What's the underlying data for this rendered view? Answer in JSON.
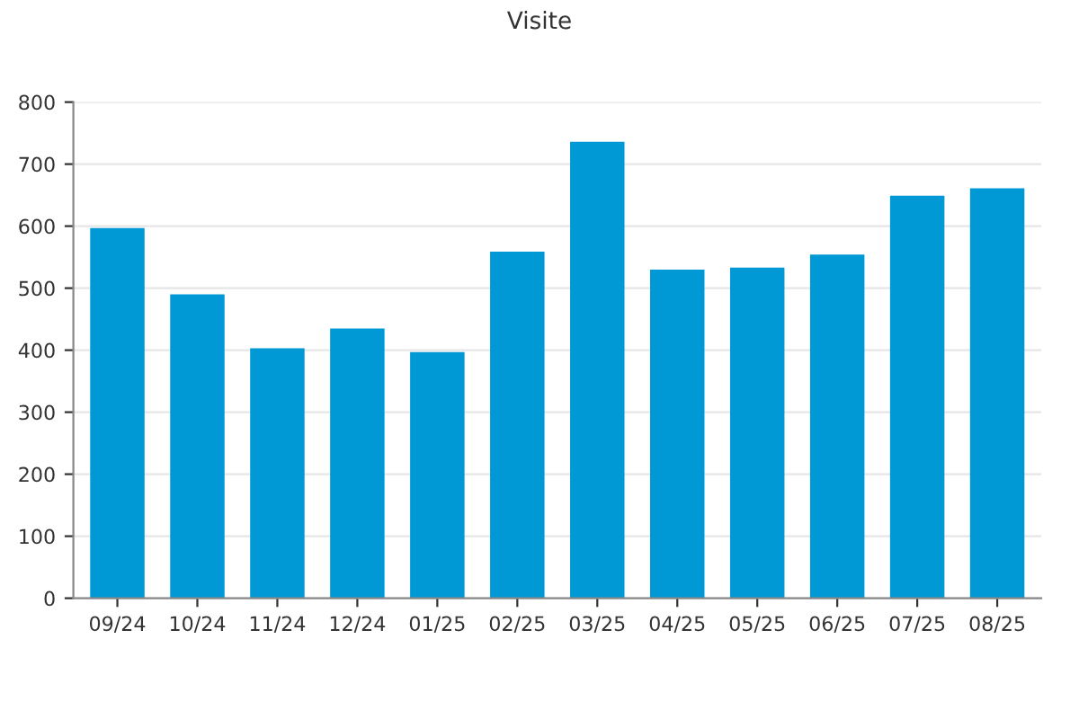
{
  "chart_data": {
    "type": "bar",
    "title": "Visite",
    "categories": [
      "09/24",
      "10/24",
      "11/24",
      "12/24",
      "01/25",
      "02/25",
      "03/25",
      "04/25",
      "05/25",
      "06/25",
      "07/25",
      "08/25"
    ],
    "values": [
      597,
      490,
      403,
      435,
      397,
      559,
      736,
      530,
      533,
      554,
      649,
      661
    ],
    "color": "#0099d6",
    "ylim": [
      0,
      800
    ],
    "yticks": [
      0,
      100,
      200,
      300,
      400,
      500,
      600,
      700,
      800
    ],
    "grid": "y"
  }
}
